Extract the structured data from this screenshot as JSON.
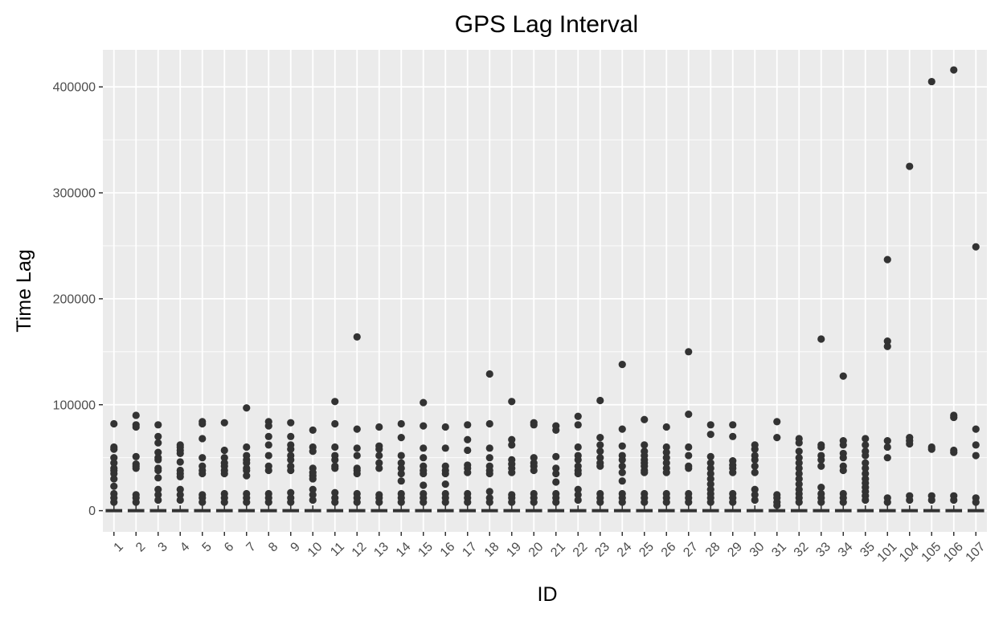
{
  "chart_data": {
    "type": "scatter",
    "title": "GPS Lag Interval",
    "xlabel": "ID",
    "ylabel": "Time Lag",
    "ylim": [
      -20000,
      435000
    ],
    "yticks": [
      0,
      100000,
      200000,
      300000,
      400000
    ],
    "ytick_labels": [
      "0",
      "100000",
      "200000",
      "300000",
      "400000"
    ],
    "grid": true,
    "background": "#ebebeb",
    "grid_color": "#ffffff",
    "point_color": "#333333",
    "categories": [
      "1",
      "2",
      "3",
      "4",
      "5",
      "6",
      "7",
      "8",
      "9",
      "10",
      "11",
      "12",
      "13",
      "14",
      "15",
      "16",
      "17",
      "18",
      "19",
      "20",
      "21",
      "22",
      "23",
      "24",
      "25",
      "26",
      "27",
      "28",
      "29",
      "30",
      "31",
      "32",
      "33",
      "34",
      "35",
      "101",
      "104",
      "105",
      "106",
      "107"
    ],
    "outliers": [
      [
        82000,
        60000,
        58000,
        50000,
        45000,
        40000,
        38000,
        35000,
        30000,
        23000,
        16000,
        12000,
        8000
      ],
      [
        90000,
        81000,
        79000,
        51000,
        44000,
        42000,
        40000,
        15000,
        12000,
        8000
      ],
      [
        81000,
        70000,
        64000,
        55000,
        50000,
        48000,
        40000,
        38000,
        31000,
        20000,
        15000,
        10000
      ],
      [
        62000,
        60000,
        57000,
        54000,
        46000,
        38000,
        35000,
        32000,
        20000,
        15000,
        10000
      ],
      [
        84000,
        82000,
        68000,
        50000,
        42000,
        38000,
        35000,
        15000,
        12000,
        8000
      ],
      [
        83000,
        57000,
        50000,
        45000,
        42000,
        38000,
        35000,
        16000,
        12000,
        8000
      ],
      [
        97000,
        60000,
        52000,
        48000,
        45000,
        40000,
        38000,
        33000,
        16000,
        12000,
        8000
      ],
      [
        84000,
        80000,
        70000,
        62000,
        52000,
        42000,
        38000,
        16000,
        12000,
        8000
      ],
      [
        83000,
        70000,
        62000,
        58000,
        52000,
        48000,
        42000,
        38000,
        17000,
        12000,
        8000
      ],
      [
        76000,
        60000,
        56000,
        40000,
        36000,
        33000,
        30000,
        20000,
        15000,
        10000
      ],
      [
        103000,
        82000,
        60000,
        52000,
        48000,
        42000,
        40000,
        17000,
        12000,
        8000
      ],
      [
        164000,
        77000,
        59000,
        52000,
        40000,
        38000,
        35000,
        16000,
        12000,
        8000
      ],
      [
        79000,
        61000,
        58000,
        52000,
        45000,
        40000,
        15000,
        12000,
        8000
      ],
      [
        82000,
        69000,
        52000,
        45000,
        40000,
        35000,
        28000,
        16000,
        12000,
        8000
      ],
      [
        102000,
        80000,
        59000,
        50000,
        42000,
        38000,
        35000,
        24000,
        16000,
        12000,
        8000
      ],
      [
        79000,
        59000,
        42000,
        38000,
        35000,
        25000,
        16000,
        12000,
        8000
      ],
      [
        81000,
        67000,
        57000,
        43000,
        40000,
        36000,
        16000,
        12000,
        8000
      ],
      [
        129000,
        82000,
        59000,
        50000,
        42000,
        38000,
        35000,
        18000,
        12000,
        8000
      ],
      [
        103000,
        67000,
        62000,
        48000,
        44000,
        40000,
        36000,
        15000,
        12000,
        8000
      ],
      [
        83000,
        81000,
        50000,
        45000,
        42000,
        38000,
        16000,
        12000,
        8000
      ],
      [
        80000,
        76000,
        51000,
        40000,
        35000,
        27000,
        16000,
        12000,
        8000
      ],
      [
        89000,
        81000,
        60000,
        52000,
        48000,
        42000,
        38000,
        35000,
        20000,
        15000,
        10000
      ],
      [
        104000,
        69000,
        62000,
        56000,
        50000,
        45000,
        42000,
        16000,
        12000,
        8000
      ],
      [
        138000,
        77000,
        61000,
        52000,
        48000,
        42000,
        36000,
        28000,
        16000,
        12000,
        8000
      ],
      [
        86000,
        62000,
        56000,
        52000,
        48000,
        45000,
        42000,
        38000,
        36000,
        16000,
        12000,
        8000
      ],
      [
        79000,
        60000,
        55000,
        50000,
        45000,
        40000,
        36000,
        16000,
        12000,
        8000
      ],
      [
        150000,
        91000,
        60000,
        52000,
        42000,
        40000,
        16000,
        12000,
        8000
      ],
      [
        81000,
        72000,
        51000,
        45000,
        40000,
        35000,
        30000,
        25000,
        20000,
        16000,
        12000,
        8000
      ],
      [
        81000,
        70000,
        47000,
        43000,
        40000,
        36000,
        16000,
        12000,
        8000
      ],
      [
        62000,
        58000,
        52000,
        48000,
        42000,
        36000,
        20000,
        15000,
        10000
      ],
      [
        84000,
        69000,
        15000,
        12000,
        8000,
        5000
      ],
      [
        68000,
        64000,
        56000,
        50000,
        45000,
        40000,
        35000,
        30000,
        25000,
        20000,
        16000,
        12000,
        8000
      ],
      [
        162000,
        62000,
        60000,
        52000,
        48000,
        42000,
        22000,
        16000,
        12000,
        8000
      ],
      [
        127000,
        66000,
        62000,
        54000,
        50000,
        42000,
        38000,
        16000,
        12000,
        8000
      ],
      [
        68000,
        62000,
        56000,
        52000,
        45000,
        40000,
        35000,
        30000,
        26000,
        22000,
        18000,
        14000,
        10000
      ],
      [
        237000,
        160000,
        155000,
        66000,
        60000,
        50000,
        12000,
        8000
      ],
      [
        325000,
        69000,
        66000,
        63000,
        14000,
        10000
      ],
      [
        405000,
        60000,
        58000,
        14000,
        10000
      ],
      [
        416000,
        90000,
        88000,
        57000,
        55000,
        14000,
        10000
      ],
      [
        249000,
        77000,
        62000,
        52000,
        12000,
        8000
      ]
    ]
  }
}
